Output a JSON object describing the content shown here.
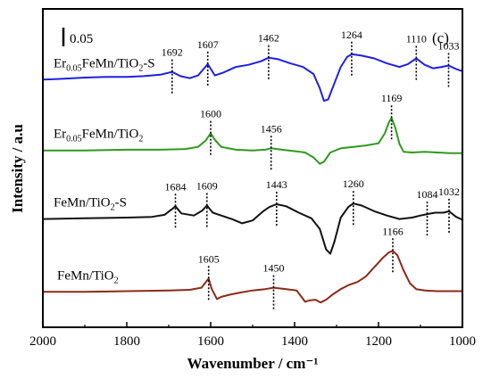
{
  "chart_data": {
    "type": "line",
    "panel_label": "(c)",
    "scale_bar_label": "0.05",
    "scale_bar_value": 0.05,
    "xlabel": "Wavenumber / cm⁻¹",
    "ylabel": "Intensity / a.u",
    "xlim": [
      2000,
      1000
    ],
    "x_ticks": [
      2000,
      1800,
      1600,
      1400,
      1200,
      1000
    ],
    "ylim": [
      -0.05,
      0.4
    ],
    "series": [
      {
        "name": "Er0.05FeMn/TiO2-S",
        "label_parts": [
          {
            "text": "Er",
            "sub": false
          },
          {
            "text": "0.05",
            "sub": true
          },
          {
            "text": "FeMn/TiO",
            "sub": false
          },
          {
            "text": "2",
            "sub": true
          },
          {
            "text": "-S",
            "sub": false
          }
        ],
        "color": "#1f1fe0",
        "points": [
          [
            2000,
            0.3
          ],
          [
            1960,
            0.301
          ],
          [
            1900,
            0.303
          ],
          [
            1850,
            0.304
          ],
          [
            1800,
            0.304
          ],
          [
            1760,
            0.305
          ],
          [
            1720,
            0.307
          ],
          [
            1692,
            0.311
          ],
          [
            1672,
            0.305
          ],
          [
            1650,
            0.302
          ],
          [
            1630,
            0.306
          ],
          [
            1607,
            0.322
          ],
          [
            1590,
            0.306
          ],
          [
            1570,
            0.31
          ],
          [
            1540,
            0.318
          ],
          [
            1510,
            0.321
          ],
          [
            1480,
            0.326
          ],
          [
            1462,
            0.331
          ],
          [
            1440,
            0.329
          ],
          [
            1410,
            0.323
          ],
          [
            1380,
            0.318
          ],
          [
            1355,
            0.308
          ],
          [
            1340,
            0.288
          ],
          [
            1330,
            0.27
          ],
          [
            1320,
            0.272
          ],
          [
            1305,
            0.295
          ],
          [
            1290,
            0.318
          ],
          [
            1275,
            0.332
          ],
          [
            1264,
            0.336
          ],
          [
            1240,
            0.334
          ],
          [
            1210,
            0.33
          ],
          [
            1180,
            0.323
          ],
          [
            1150,
            0.318
          ],
          [
            1130,
            0.322
          ],
          [
            1110,
            0.33
          ],
          [
            1090,
            0.321
          ],
          [
            1070,
            0.316
          ],
          [
            1050,
            0.318
          ],
          [
            1033,
            0.32
          ],
          [
            1015,
            0.315
          ],
          [
            1000,
            0.312
          ]
        ],
        "peaks": [
          {
            "x": 1692,
            "label": "1692"
          },
          {
            "x": 1607,
            "label": "1607"
          },
          {
            "x": 1462,
            "label": "1462"
          },
          {
            "x": 1264,
            "label": "1264"
          },
          {
            "x": 1110,
            "label": "1110"
          },
          {
            "x": 1033,
            "label": "1033"
          }
        ]
      },
      {
        "name": "Er0.05FeMn/TiO2",
        "label_parts": [
          {
            "text": "Er",
            "sub": false
          },
          {
            "text": "0.05",
            "sub": true
          },
          {
            "text": "FeMn/TiO",
            "sub": false
          },
          {
            "text": "2",
            "sub": true
          }
        ],
        "color": "#2e9a1e",
        "points": [
          [
            2000,
            0.2
          ],
          [
            1900,
            0.2
          ],
          [
            1800,
            0.201
          ],
          [
            1720,
            0.201
          ],
          [
            1660,
            0.202
          ],
          [
            1630,
            0.205
          ],
          [
            1612,
            0.214
          ],
          [
            1600,
            0.224
          ],
          [
            1590,
            0.215
          ],
          [
            1575,
            0.205
          ],
          [
            1540,
            0.201
          ],
          [
            1500,
            0.2
          ],
          [
            1470,
            0.201
          ],
          [
            1456,
            0.203
          ],
          [
            1430,
            0.201
          ],
          [
            1400,
            0.199
          ],
          [
            1375,
            0.197
          ],
          [
            1355,
            0.19
          ],
          [
            1340,
            0.181
          ],
          [
            1330,
            0.184
          ],
          [
            1315,
            0.197
          ],
          [
            1290,
            0.203
          ],
          [
            1260,
            0.205
          ],
          [
            1230,
            0.207
          ],
          [
            1200,
            0.21
          ],
          [
            1185,
            0.224
          ],
          [
            1175,
            0.24
          ],
          [
            1169,
            0.246
          ],
          [
            1160,
            0.232
          ],
          [
            1150,
            0.209
          ],
          [
            1140,
            0.198
          ],
          [
            1120,
            0.197
          ],
          [
            1090,
            0.198
          ],
          [
            1060,
            0.197
          ],
          [
            1030,
            0.196
          ],
          [
            1000,
            0.196
          ]
        ],
        "peaks": [
          {
            "x": 1600,
            "label": "1600"
          },
          {
            "x": 1456,
            "label": "1456"
          },
          {
            "x": 1169,
            "label": "1169"
          }
        ]
      },
      {
        "name": "FeMn/TiO2-S",
        "label_parts": [
          {
            "text": "FeMn/TiO",
            "sub": false
          },
          {
            "text": "2",
            "sub": true
          },
          {
            "text": "-S",
            "sub": false
          }
        ],
        "color": "#111111",
        "points": [
          [
            2000,
            0.103
          ],
          [
            1900,
            0.104
          ],
          [
            1800,
            0.105
          ],
          [
            1740,
            0.106
          ],
          [
            1710,
            0.109
          ],
          [
            1690,
            0.118
          ],
          [
            1684,
            0.121
          ],
          [
            1670,
            0.111
          ],
          [
            1640,
            0.108
          ],
          [
            1620,
            0.115
          ],
          [
            1609,
            0.122
          ],
          [
            1595,
            0.112
          ],
          [
            1575,
            0.108
          ],
          [
            1550,
            0.103
          ],
          [
            1525,
            0.097
          ],
          [
            1500,
            0.101
          ],
          [
            1475,
            0.114
          ],
          [
            1460,
            0.12
          ],
          [
            1443,
            0.124
          ],
          [
            1420,
            0.121
          ],
          [
            1390,
            0.112
          ],
          [
            1360,
            0.104
          ],
          [
            1340,
            0.089
          ],
          [
            1325,
            0.06
          ],
          [
            1315,
            0.054
          ],
          [
            1305,
            0.071
          ],
          [
            1290,
            0.105
          ],
          [
            1272,
            0.12
          ],
          [
            1260,
            0.125
          ],
          [
            1240,
            0.122
          ],
          [
            1210,
            0.114
          ],
          [
            1180,
            0.108
          ],
          [
            1150,
            0.103
          ],
          [
            1120,
            0.105
          ],
          [
            1100,
            0.108
          ],
          [
            1084,
            0.11
          ],
          [
            1065,
            0.112
          ],
          [
            1045,
            0.112
          ],
          [
            1032,
            0.114
          ],
          [
            1015,
            0.106
          ],
          [
            1000,
            0.102
          ]
        ],
        "peaks": [
          {
            "x": 1684,
            "label": "1684"
          },
          {
            "x": 1609,
            "label": "1609"
          },
          {
            "x": 1443,
            "label": "1443"
          },
          {
            "x": 1260,
            "label": "1260"
          },
          {
            "x": 1084,
            "label": "1084"
          },
          {
            "x": 1032,
            "label": "1032"
          }
        ]
      },
      {
        "name": "FeMn/TiO2",
        "label_parts": [
          {
            "text": "FeMn/TiO",
            "sub": false
          },
          {
            "text": "2",
            "sub": true
          }
        ],
        "color": "#8b2a17",
        "points": [
          [
            2000,
            0.0
          ],
          [
            1900,
            0.0
          ],
          [
            1800,
            0.001
          ],
          [
            1700,
            0.002
          ],
          [
            1650,
            0.003
          ],
          [
            1622,
            0.006
          ],
          [
            1610,
            0.015
          ],
          [
            1605,
            0.019
          ],
          [
            1598,
            0.005
          ],
          [
            1585,
            -0.01
          ],
          [
            1575,
            -0.007
          ],
          [
            1555,
            -0.004
          ],
          [
            1530,
            -0.001
          ],
          [
            1500,
            0.002
          ],
          [
            1470,
            0.004
          ],
          [
            1450,
            0.006
          ],
          [
            1420,
            0.004
          ],
          [
            1395,
            0.002
          ],
          [
            1385,
            -0.006
          ],
          [
            1375,
            -0.014
          ],
          [
            1365,
            -0.012
          ],
          [
            1350,
            -0.011
          ],
          [
            1338,
            -0.015
          ],
          [
            1325,
            -0.011
          ],
          [
            1310,
            -0.004
          ],
          [
            1290,
            0.004
          ],
          [
            1270,
            0.01
          ],
          [
            1250,
            0.014
          ],
          [
            1230,
            0.022
          ],
          [
            1210,
            0.035
          ],
          [
            1190,
            0.048
          ],
          [
            1175,
            0.056
          ],
          [
            1166,
            0.058
          ],
          [
            1155,
            0.052
          ],
          [
            1140,
            0.03
          ],
          [
            1125,
            0.012
          ],
          [
            1110,
            0.004
          ],
          [
            1090,
            0.002
          ],
          [
            1060,
            0.001
          ],
          [
            1030,
            0.001
          ],
          [
            1000,
            0.001
          ]
        ],
        "peaks": [
          {
            "x": 1605,
            "label": "1605"
          },
          {
            "x": 1450,
            "label": "1450"
          },
          {
            "x": 1166,
            "label": "1166"
          }
        ]
      }
    ]
  }
}
